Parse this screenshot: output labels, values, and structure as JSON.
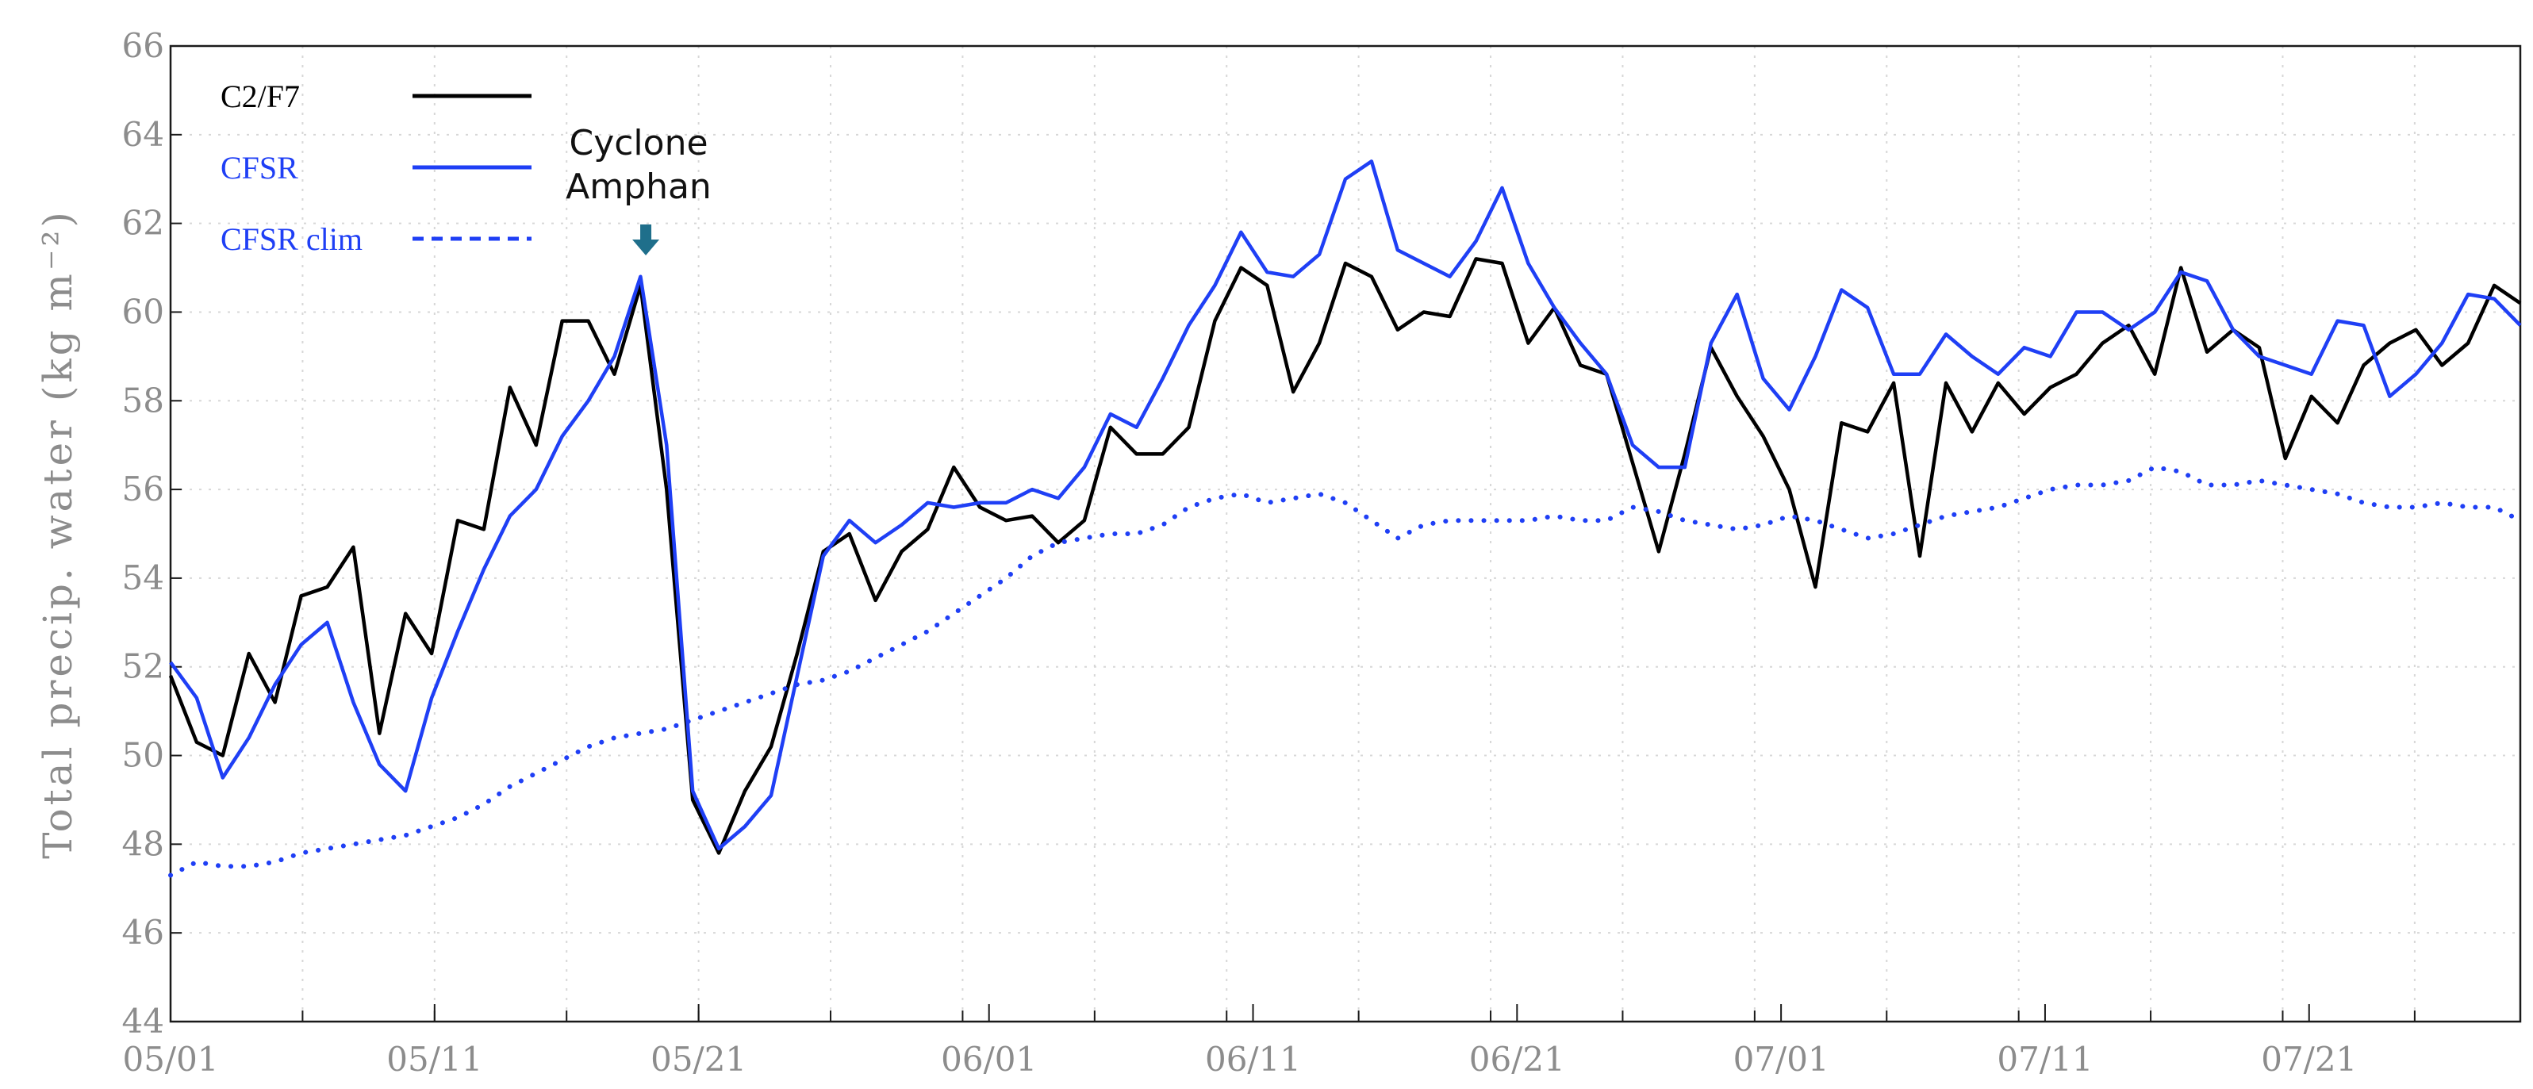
{
  "chart_data": {
    "type": "line",
    "title": "",
    "xlabel": "",
    "ylabel": "Total precip. water (kg m⁻²)",
    "ylim": [
      44,
      66
    ],
    "y_ticks": [
      44,
      46,
      48,
      50,
      52,
      54,
      56,
      58,
      60,
      62,
      64,
      66
    ],
    "x_start": "05/01",
    "x_end": "07/29",
    "x_ticks": [
      "05/01",
      "05/11",
      "05/21",
      "06/01",
      "06/11",
      "06/21",
      "07/01",
      "07/11",
      "07/21"
    ],
    "grid": true,
    "legend_position": "top-left",
    "series": [
      {
        "name": "C2/F7",
        "color": "#000000",
        "style": "solid",
        "values": [
          51.8,
          50.3,
          50.0,
          52.3,
          51.2,
          53.6,
          53.8,
          54.7,
          50.5,
          53.2,
          52.3,
          55.3,
          55.1,
          58.3,
          57.0,
          59.8,
          59.8,
          58.6,
          60.6,
          56.0,
          49.0,
          47.8,
          49.2,
          50.2,
          52.3,
          54.6,
          55.0,
          53.5,
          54.6,
          55.1,
          56.5,
          55.6,
          55.3,
          55.4,
          54.8,
          55.3,
          57.4,
          56.8,
          56.8,
          57.4,
          59.8,
          61.0,
          60.6,
          58.2,
          59.3,
          61.1,
          60.8,
          59.6,
          60.0,
          59.9,
          61.2,
          61.1,
          59.3,
          60.1,
          58.8,
          58.6,
          56.6,
          54.6,
          56.8,
          59.2,
          58.1,
          57.2,
          56.0,
          53.8,
          57.5,
          57.3,
          58.4,
          54.5,
          58.4,
          57.3,
          58.4,
          57.7,
          58.3,
          58.6,
          59.3,
          59.7,
          58.6,
          61.0,
          59.1,
          59.6,
          59.2,
          56.7,
          58.1,
          57.5,
          58.8,
          59.3,
          59.6,
          58.8,
          59.3,
          60.6,
          60.2
        ]
      },
      {
        "name": "CFSR",
        "color": "#1f3ff5",
        "style": "solid",
        "values": [
          52.1,
          51.3,
          49.5,
          50.4,
          51.6,
          52.5,
          53.0,
          51.2,
          49.8,
          49.2,
          51.3,
          52.8,
          54.2,
          55.4,
          56.0,
          57.2,
          58.0,
          59.0,
          60.8,
          57.0,
          49.2,
          47.9,
          48.4,
          49.1,
          51.8,
          54.5,
          55.3,
          54.8,
          55.2,
          55.7,
          55.6,
          55.7,
          55.7,
          56.0,
          55.8,
          56.5,
          57.7,
          57.4,
          58.5,
          59.7,
          60.6,
          61.8,
          60.9,
          60.8,
          61.3,
          63.0,
          63.4,
          61.4,
          61.1,
          60.8,
          61.6,
          62.8,
          61.1,
          60.1,
          59.3,
          58.6,
          57.0,
          56.5,
          56.5,
          59.3,
          60.4,
          58.5,
          57.8,
          59.0,
          60.5,
          60.1,
          58.6,
          58.6,
          59.5,
          59.0,
          58.6,
          59.2,
          59.0,
          60.0,
          60.0,
          59.6,
          60.0,
          60.9,
          60.7,
          59.6,
          59.0,
          58.8,
          58.6,
          59.8,
          59.7,
          58.1,
          58.6,
          59.3,
          60.4,
          60.3,
          59.7
        ]
      },
      {
        "name": "CFSR clim",
        "color": "#1f3ff5",
        "style": "dotted",
        "values": [
          47.3,
          47.6,
          47.5,
          47.5,
          47.6,
          47.8,
          47.9,
          48.0,
          48.1,
          48.2,
          48.4,
          48.6,
          48.9,
          49.3,
          49.6,
          49.9,
          50.2,
          50.4,
          50.5,
          50.6,
          50.8,
          51.0,
          51.2,
          51.4,
          51.6,
          51.7,
          51.9,
          52.2,
          52.5,
          52.8,
          53.2,
          53.6,
          54.0,
          54.5,
          54.8,
          54.9,
          55.0,
          55.0,
          55.2,
          55.6,
          55.8,
          55.9,
          55.7,
          55.8,
          55.9,
          55.7,
          55.3,
          54.9,
          55.2,
          55.3,
          55.3,
          55.3,
          55.3,
          55.4,
          55.3,
          55.3,
          55.6,
          55.5,
          55.3,
          55.2,
          55.1,
          55.2,
          55.4,
          55.3,
          55.1,
          54.9,
          55.0,
          55.2,
          55.4,
          55.5,
          55.6,
          55.8,
          56.0,
          56.1,
          56.1,
          56.2,
          56.5,
          56.4,
          56.1,
          56.1,
          56.2,
          56.1,
          56.0,
          55.9,
          55.7,
          55.6,
          55.6,
          55.7,
          55.6,
          55.6,
          55.3
        ]
      }
    ],
    "annotation": {
      "lines": [
        "Cyclone",
        "Amphan"
      ],
      "date": "05/19",
      "arrow_color": "#1f6f8b"
    }
  }
}
